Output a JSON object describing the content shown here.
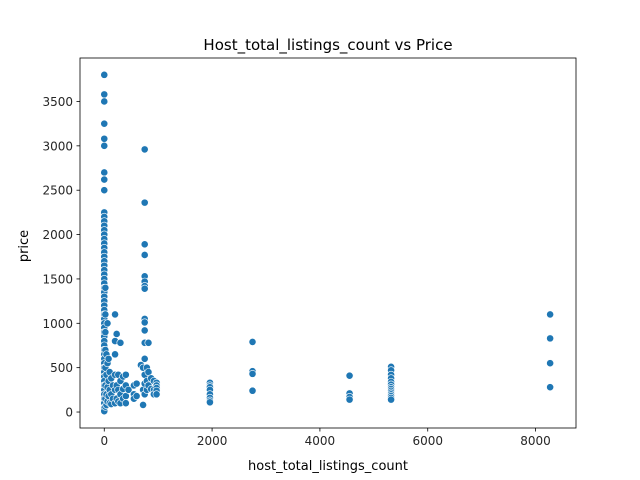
{
  "chart_data": {
    "type": "scatter",
    "title": "Host_total_listings_count vs Price",
    "xlabel": "host_total_listings_count",
    "ylabel": "price",
    "xlim": [
      -450,
      8750
    ],
    "ylim": [
      -180,
      3990
    ],
    "xticks": [
      0,
      2000,
      4000,
      6000,
      8000
    ],
    "yticks": [
      0,
      500,
      1000,
      1500,
      2000,
      2500,
      3000,
      3500
    ],
    "grid": false,
    "legend": "none",
    "color": "#1f77b4",
    "series": [
      {
        "points": [
          [
            0,
            3800
          ],
          [
            0,
            3580
          ],
          [
            0,
            3500
          ],
          [
            0,
            3250
          ],
          [
            0,
            3080
          ],
          [
            0,
            3000
          ],
          [
            0,
            2700
          ],
          [
            0,
            2620
          ],
          [
            0,
            2500
          ],
          [
            0,
            2250
          ],
          [
            0,
            2200
          ],
          [
            0,
            2150
          ],
          [
            0,
            2100
          ],
          [
            0,
            2050
          ],
          [
            0,
            2000
          ],
          [
            0,
            1950
          ],
          [
            0,
            1900
          ],
          [
            0,
            1850
          ],
          [
            0,
            1800
          ],
          [
            0,
            1750
          ],
          [
            0,
            1700
          ],
          [
            0,
            1650
          ],
          [
            0,
            1600
          ],
          [
            0,
            1550
          ],
          [
            0,
            1500
          ],
          [
            0,
            1450
          ],
          [
            0,
            1400
          ],
          [
            0,
            1350
          ],
          [
            0,
            1300
          ],
          [
            0,
            1250
          ],
          [
            0,
            1200
          ],
          [
            0,
            1150
          ],
          [
            0,
            1100
          ],
          [
            0,
            1050
          ],
          [
            0,
            1000
          ],
          [
            0,
            950
          ],
          [
            0,
            900
          ],
          [
            0,
            850
          ],
          [
            0,
            800
          ],
          [
            0,
            750
          ],
          [
            0,
            700
          ],
          [
            0,
            650
          ],
          [
            0,
            600
          ],
          [
            0,
            550
          ],
          [
            0,
            500
          ],
          [
            0,
            450
          ],
          [
            0,
            400
          ],
          [
            0,
            350
          ],
          [
            0,
            300
          ],
          [
            0,
            250
          ],
          [
            0,
            200
          ],
          [
            0,
            150
          ],
          [
            0,
            100
          ],
          [
            0,
            50
          ],
          [
            0,
            10
          ],
          [
            20,
            1400
          ],
          [
            20,
            1100
          ],
          [
            20,
            900
          ],
          [
            20,
            700
          ],
          [
            20,
            500
          ],
          [
            20,
            300
          ],
          [
            20,
            150
          ],
          [
            20,
            60
          ],
          [
            40,
            650
          ],
          [
            40,
            420
          ],
          [
            40,
            200
          ],
          [
            40,
            80
          ],
          [
            60,
            1000
          ],
          [
            60,
            550
          ],
          [
            60,
            280
          ],
          [
            60,
            120
          ],
          [
            80,
            600
          ],
          [
            80,
            350
          ],
          [
            80,
            180
          ],
          [
            100,
            450
          ],
          [
            100,
            250
          ],
          [
            100,
            100
          ],
          [
            130,
            380
          ],
          [
            130,
            200
          ],
          [
            130,
            90
          ],
          [
            160,
            300
          ],
          [
            160,
            150
          ],
          [
            200,
            1100
          ],
          [
            200,
            800
          ],
          [
            200,
            650
          ],
          [
            200,
            420
          ],
          [
            200,
            250
          ],
          [
            200,
            100
          ],
          [
            230,
            880
          ],
          [
            230,
            300
          ],
          [
            230,
            150
          ],
          [
            260,
            420
          ],
          [
            260,
            250
          ],
          [
            260,
            120
          ],
          [
            300,
            780
          ],
          [
            300,
            350
          ],
          [
            300,
            200
          ],
          [
            300,
            100
          ],
          [
            350,
            400
          ],
          [
            350,
            260
          ],
          [
            350,
            150
          ],
          [
            400,
            420
          ],
          [
            400,
            300
          ],
          [
            400,
            180
          ],
          [
            400,
            100
          ],
          [
            450,
            250
          ],
          [
            550,
            300
          ],
          [
            550,
            200
          ],
          [
            550,
            150
          ],
          [
            600,
            320
          ],
          [
            600,
            180
          ],
          [
            680,
            530
          ],
          [
            720,
            500
          ],
          [
            720,
            250
          ],
          [
            720,
            80
          ],
          [
            750,
            2960
          ],
          [
            750,
            2360
          ],
          [
            750,
            1890
          ],
          [
            750,
            1770
          ],
          [
            750,
            1530
          ],
          [
            750,
            1470
          ],
          [
            750,
            1420
          ],
          [
            750,
            1390
          ],
          [
            750,
            1050
          ],
          [
            750,
            1010
          ],
          [
            750,
            920
          ],
          [
            750,
            780
          ],
          [
            750,
            600
          ],
          [
            750,
            420
          ],
          [
            750,
            320
          ],
          [
            750,
            200
          ],
          [
            790,
            500
          ],
          [
            790,
            350
          ],
          [
            790,
            250
          ],
          [
            820,
            780
          ],
          [
            820,
            450
          ],
          [
            820,
            300
          ],
          [
            870,
            380
          ],
          [
            870,
            260
          ],
          [
            920,
            350
          ],
          [
            920,
            250
          ],
          [
            920,
            200
          ],
          [
            970,
            330
          ],
          [
            970,
            300
          ],
          [
            970,
            270
          ],
          [
            970,
            240
          ],
          [
            970,
            200
          ],
          [
            1960,
            330
          ],
          [
            1960,
            300
          ],
          [
            1960,
            280
          ],
          [
            1960,
            250
          ],
          [
            1960,
            200
          ],
          [
            1960,
            160
          ],
          [
            1960,
            130
          ],
          [
            1960,
            110
          ],
          [
            2750,
            790
          ],
          [
            2750,
            460
          ],
          [
            2750,
            430
          ],
          [
            2750,
            240
          ],
          [
            4550,
            410
          ],
          [
            4550,
            210
          ],
          [
            4550,
            170
          ],
          [
            4550,
            140
          ],
          [
            5320,
            510
          ],
          [
            5320,
            470
          ],
          [
            5320,
            420
          ],
          [
            5320,
            380
          ],
          [
            5320,
            340
          ],
          [
            5320,
            310
          ],
          [
            5320,
            280
          ],
          [
            5320,
            260
          ],
          [
            5320,
            240
          ],
          [
            5320,
            220
          ],
          [
            5320,
            200
          ],
          [
            5320,
            180
          ],
          [
            5320,
            160
          ],
          [
            5320,
            140
          ],
          [
            8270,
            1100
          ],
          [
            8270,
            830
          ],
          [
            8270,
            550
          ],
          [
            8270,
            280
          ]
        ]
      }
    ]
  }
}
